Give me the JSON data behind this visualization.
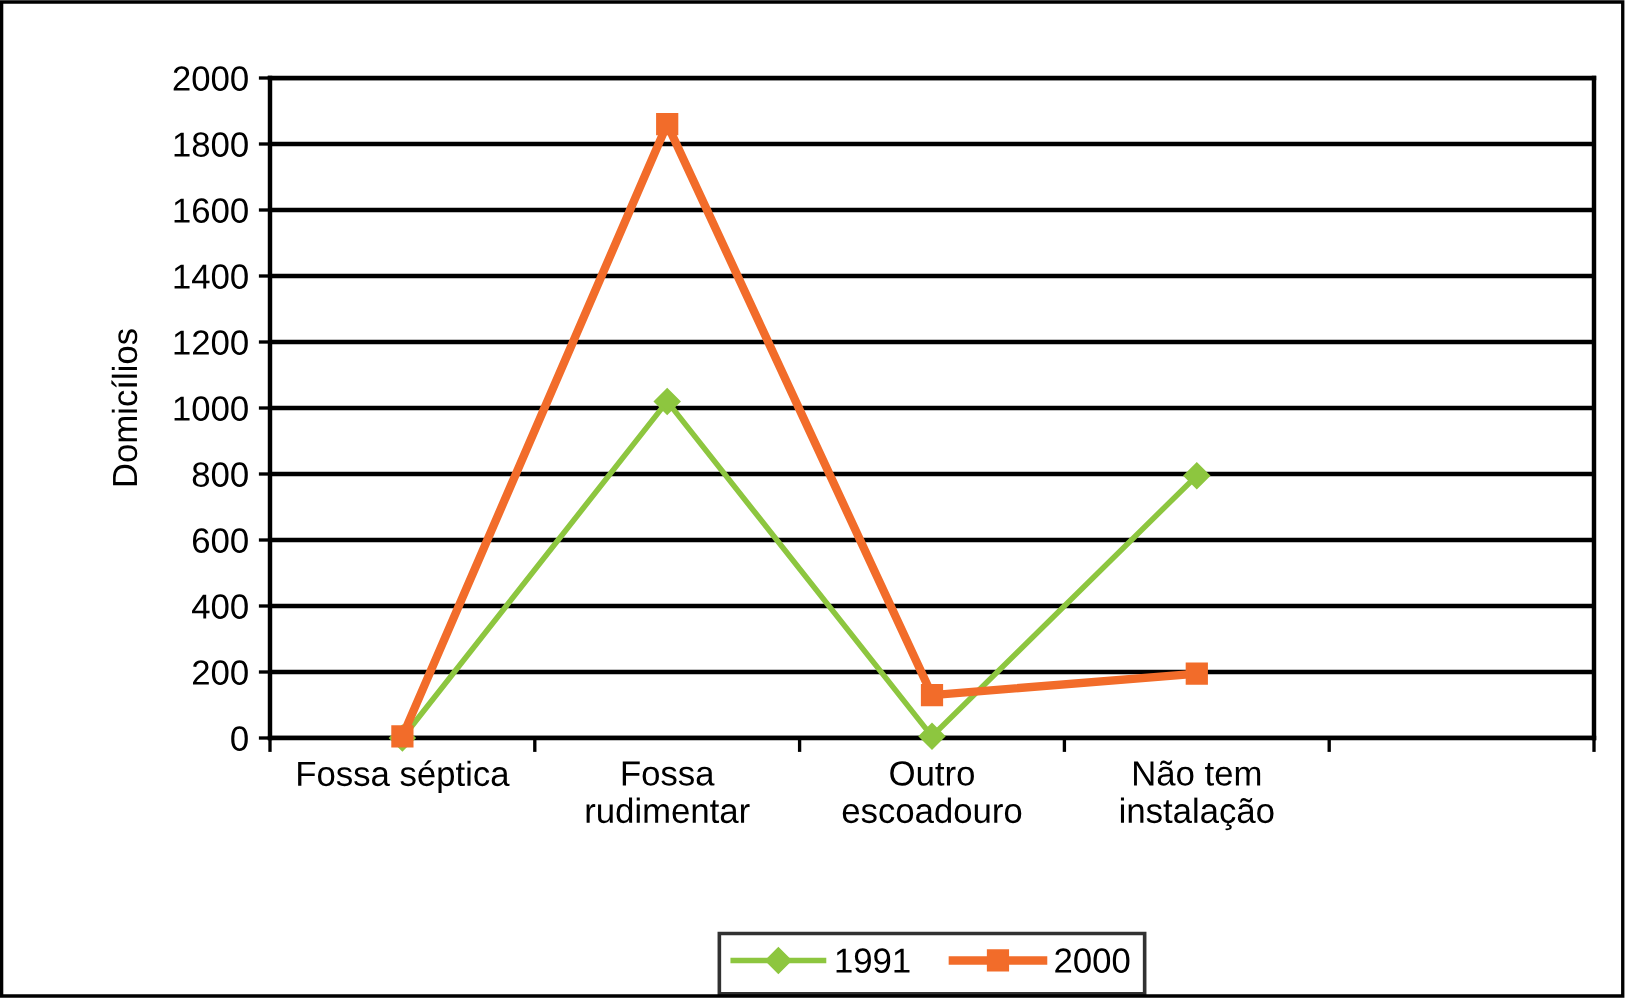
{
  "chart_data": {
    "type": "line",
    "ylabel": "Domicílios",
    "categories": [
      "Fossa séptica",
      "Fossa\nrudimentar",
      "Outro\nescoadouro",
      "Não tem\ninstalação",
      null
    ],
    "series": [
      {
        "name": "1991",
        "color": "#8dc63f",
        "values": [
          0,
          1020,
          5,
          795,
          null
        ],
        "marker": "diamond"
      },
      {
        "name": "2000",
        "color": "#f26c2a",
        "values": [
          5,
          1860,
          130,
          195,
          null
        ],
        "marker": "square"
      }
    ],
    "ylim": [
      0,
      2000
    ],
    "yticks": [
      0,
      200,
      400,
      600,
      800,
      1000,
      1200,
      1400,
      1600,
      1800,
      2000
    ],
    "grid": "y",
    "legend": "bottom"
  }
}
